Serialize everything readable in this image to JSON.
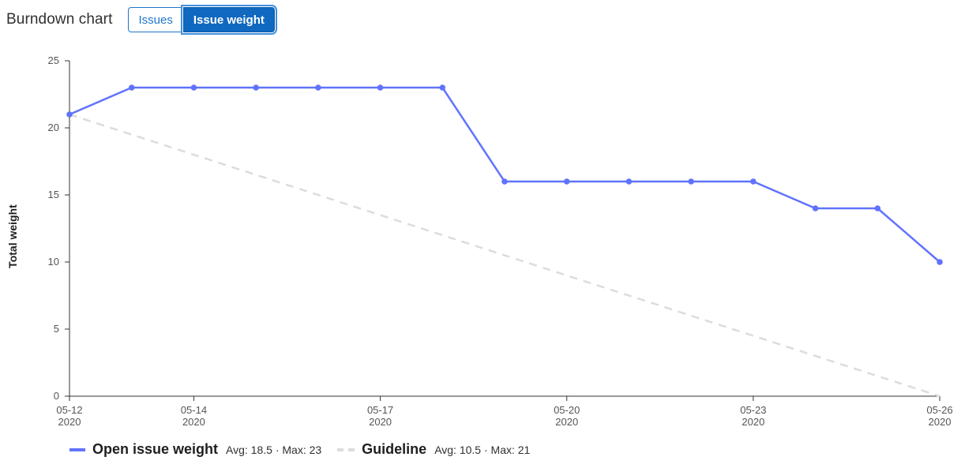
{
  "header": {
    "title": "Burndown chart",
    "tabs": [
      {
        "label": "Issues",
        "selected": false
      },
      {
        "label": "Issue weight",
        "selected": true
      }
    ]
  },
  "colors": {
    "series": "#6173fd",
    "guideline": "#dcdcdc",
    "accent": "#1068bf"
  },
  "legend": {
    "items": [
      {
        "name": "Open issue weight",
        "stats": "Avg: 18.5 · Max: 23"
      },
      {
        "name": "Guideline",
        "stats": "Avg: 10.5 · Max: 21"
      }
    ]
  },
  "chart_data": {
    "type": "line",
    "title": "Burndown chart",
    "ylabel": "Total weight",
    "xlabel": "",
    "ylim": [
      0,
      25
    ],
    "y_ticks": [
      0,
      5,
      10,
      15,
      20,
      25
    ],
    "x_range": [
      "2020-05-12",
      "2020-05-26"
    ],
    "x_ticks": [
      {
        "date": "2020-05-12",
        "label_top": "05-12",
        "label_bottom": "2020"
      },
      {
        "date": "2020-05-14",
        "label_top": "05-14",
        "label_bottom": "2020"
      },
      {
        "date": "2020-05-17",
        "label_top": "05-17",
        "label_bottom": "2020"
      },
      {
        "date": "2020-05-20",
        "label_top": "05-20",
        "label_bottom": "2020"
      },
      {
        "date": "2020-05-23",
        "label_top": "05-23",
        "label_bottom": "2020"
      },
      {
        "date": "2020-05-26",
        "label_top": "05-26",
        "label_bottom": "2020"
      }
    ],
    "grid": false,
    "legend_position": "bottom-left",
    "series": [
      {
        "name": "Open issue weight",
        "style": "solid",
        "markers": true,
        "points": [
          {
            "x": "2020-05-12",
            "y": 21
          },
          {
            "x": "2020-05-13",
            "y": 23
          },
          {
            "x": "2020-05-14",
            "y": 23
          },
          {
            "x": "2020-05-15",
            "y": 23
          },
          {
            "x": "2020-05-16",
            "y": 23
          },
          {
            "x": "2020-05-17",
            "y": 23
          },
          {
            "x": "2020-05-18",
            "y": 23
          },
          {
            "x": "2020-05-19",
            "y": 16
          },
          {
            "x": "2020-05-20",
            "y": 16
          },
          {
            "x": "2020-05-21",
            "y": 16
          },
          {
            "x": "2020-05-22",
            "y": 16
          },
          {
            "x": "2020-05-23",
            "y": 16
          },
          {
            "x": "2020-05-24",
            "y": 14
          },
          {
            "x": "2020-05-25",
            "y": 14
          },
          {
            "x": "2020-05-26",
            "y": 10
          }
        ]
      },
      {
        "name": "Guideline",
        "style": "dashed",
        "markers": false,
        "points": [
          {
            "x": "2020-05-12",
            "y": 21
          },
          {
            "x": "2020-05-26",
            "y": 0
          }
        ]
      }
    ]
  }
}
